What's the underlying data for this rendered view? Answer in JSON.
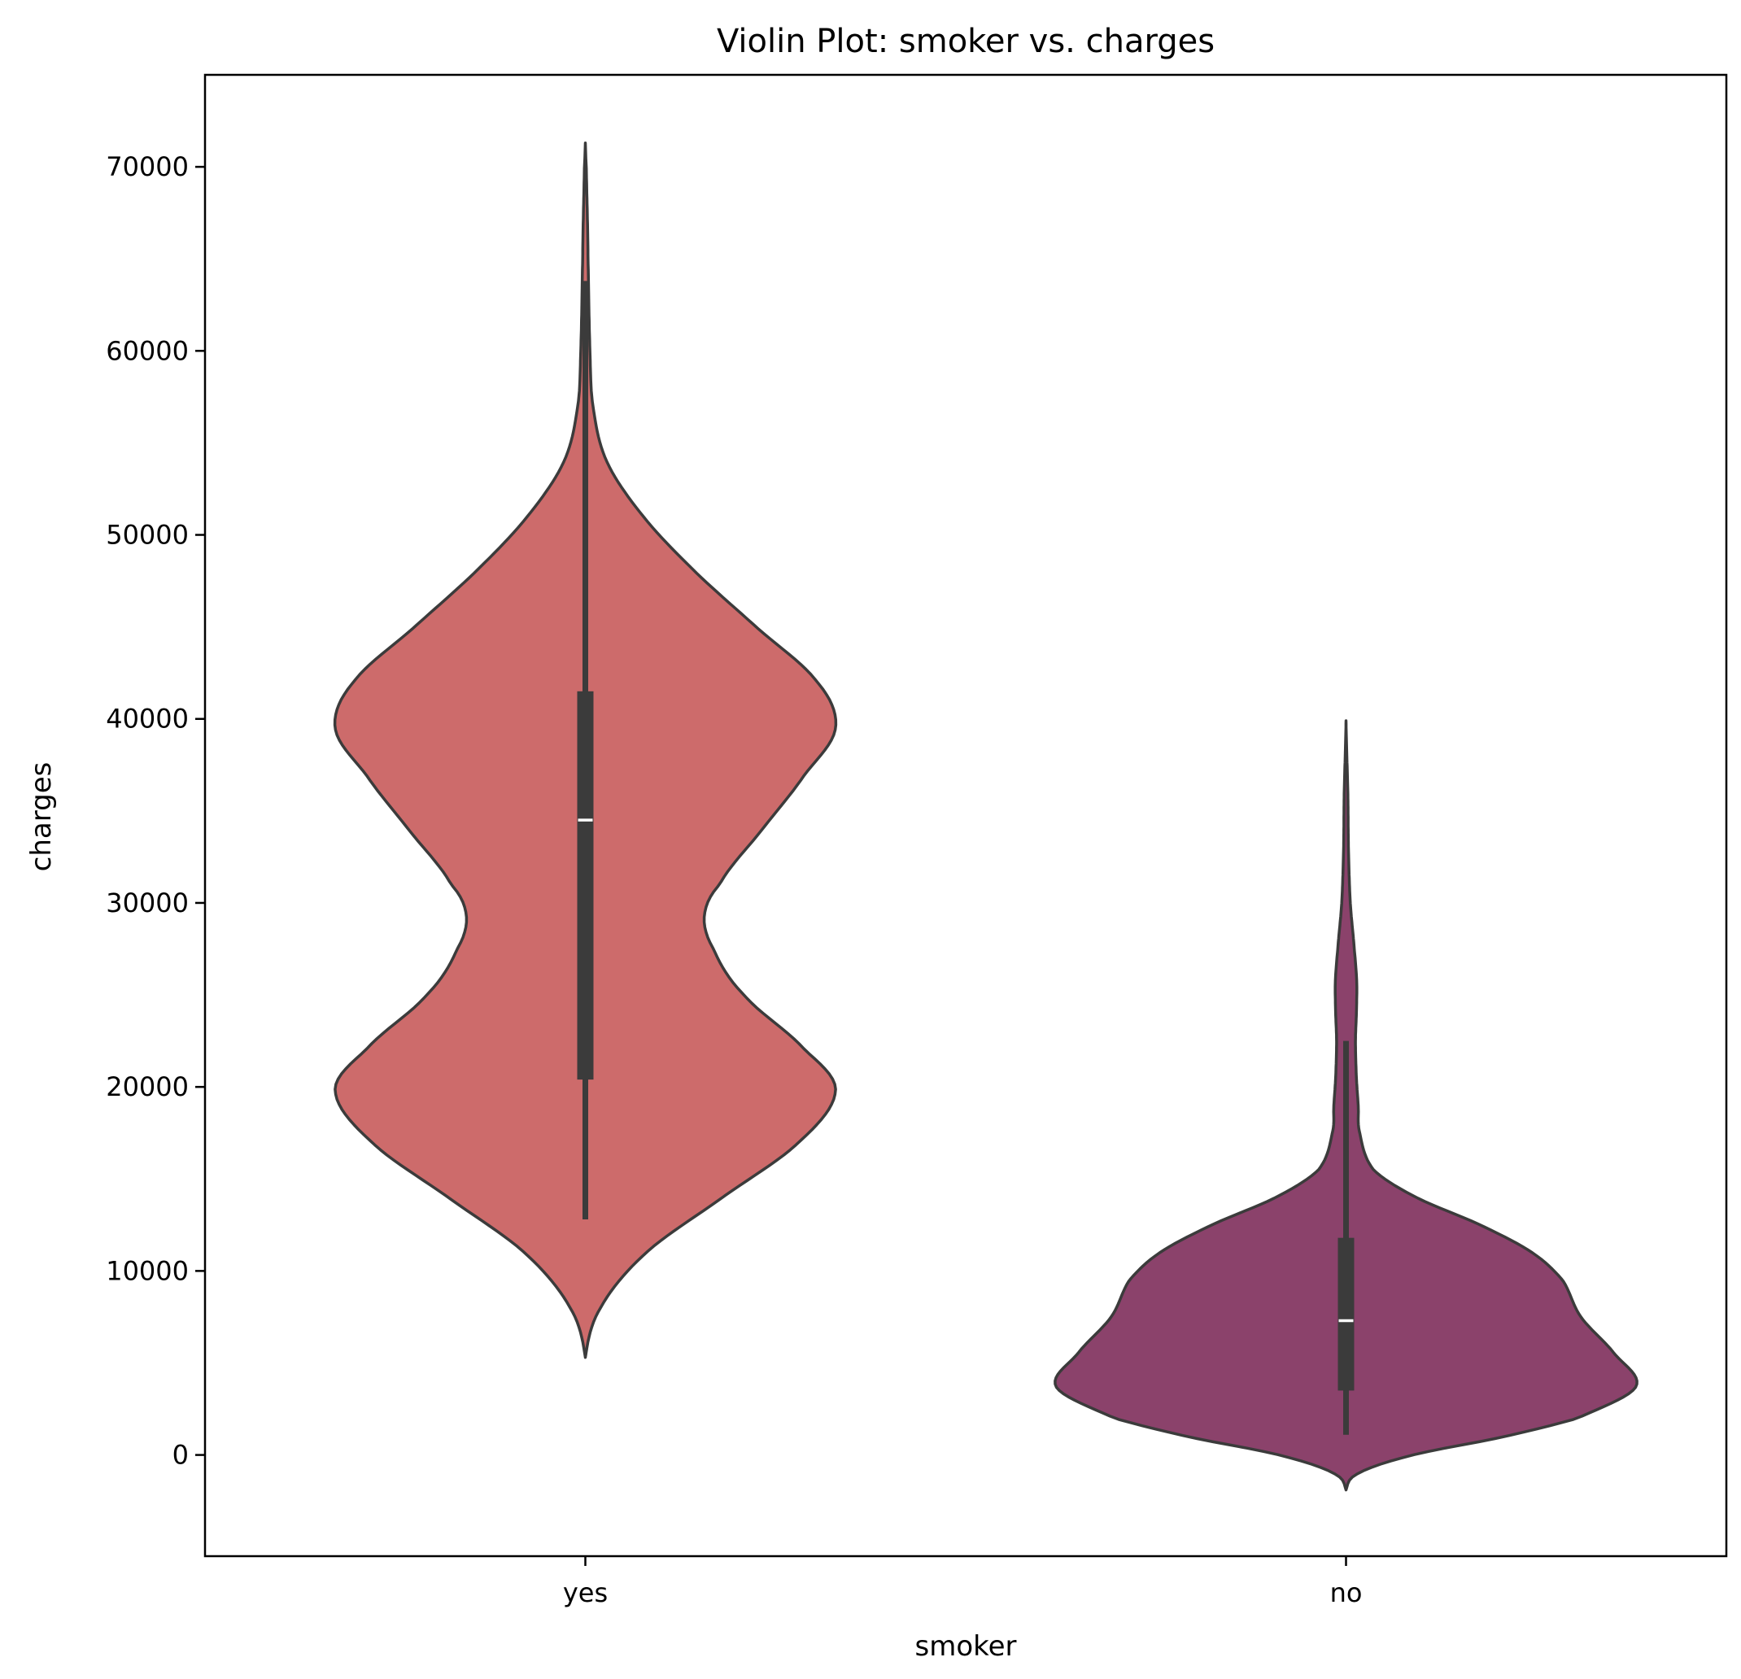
{
  "chart_data": {
    "type": "violin",
    "title": "Violin Plot: smoker vs. charges",
    "xlabel": "smoker",
    "ylabel": "charges",
    "ylim": [
      -5500,
      75000
    ],
    "categories": [
      "yes",
      "no"
    ],
    "yticks": [
      0,
      10000,
      20000,
      30000,
      40000,
      50000,
      60000,
      70000
    ],
    "grid": false,
    "series": [
      {
        "category": "yes",
        "color": "#cd6b6b",
        "min": 12800,
        "q1": 20400,
        "median": 34500,
        "q3": 41500,
        "whisker_high": 63800,
        "kde_range": [
          5300,
          71300
        ],
        "density": [
          [
            5300,
            0.0
          ],
          [
            8000,
            0.05
          ],
          [
            11000,
            0.2
          ],
          [
            14000,
            0.45
          ],
          [
            17000,
            0.7
          ],
          [
            19800,
            0.82
          ],
          [
            22000,
            0.72
          ],
          [
            25000,
            0.52
          ],
          [
            27500,
            0.42
          ],
          [
            29300,
            0.39
          ],
          [
            31000,
            0.44
          ],
          [
            34000,
            0.58
          ],
          [
            37000,
            0.72
          ],
          [
            39500,
            0.82
          ],
          [
            42000,
            0.76
          ],
          [
            45000,
            0.56
          ],
          [
            48000,
            0.36
          ],
          [
            51000,
            0.19
          ],
          [
            54000,
            0.07
          ],
          [
            57000,
            0.025
          ],
          [
            60000,
            0.015
          ],
          [
            64000,
            0.01
          ],
          [
            67000,
            0.007
          ],
          [
            70000,
            0.003
          ],
          [
            71300,
            0.0
          ]
        ]
      },
      {
        "category": "no",
        "color": "#8b426b",
        "min": 1100,
        "q1": 3500,
        "median": 7300,
        "q3": 11800,
        "whisker_high": 22500,
        "kde_range": [
          -1900,
          39900
        ],
        "density": [
          [
            -1900,
            0.0
          ],
          [
            -1000,
            0.04
          ],
          [
            0,
            0.22
          ],
          [
            1000,
            0.52
          ],
          [
            2000,
            0.76
          ],
          [
            3700,
            0.95
          ],
          [
            5500,
            0.88
          ],
          [
            7500,
            0.77
          ],
          [
            9500,
            0.71
          ],
          [
            11000,
            0.61
          ],
          [
            12500,
            0.44
          ],
          [
            14000,
            0.23
          ],
          [
            15500,
            0.09
          ],
          [
            17500,
            0.045
          ],
          [
            19000,
            0.04
          ],
          [
            20500,
            0.034
          ],
          [
            22500,
            0.031
          ],
          [
            24000,
            0.034
          ],
          [
            25700,
            0.035
          ],
          [
            27500,
            0.027
          ],
          [
            30000,
            0.014
          ],
          [
            33000,
            0.008
          ],
          [
            36000,
            0.006
          ],
          [
            38500,
            0.002
          ],
          [
            39900,
            0.0
          ]
        ]
      }
    ]
  }
}
